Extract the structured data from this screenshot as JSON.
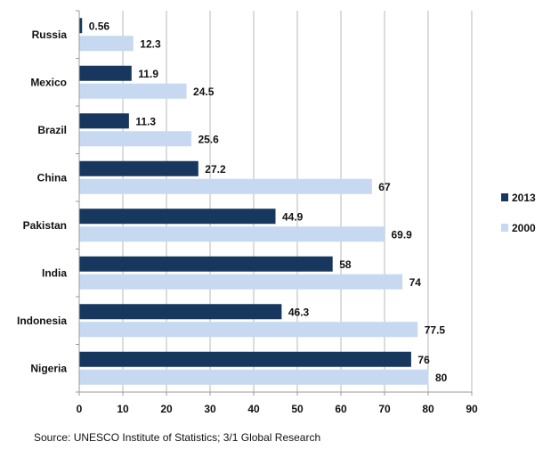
{
  "chart_data": {
    "type": "bar",
    "orientation": "horizontal",
    "categories": [
      "Russia",
      "Mexico",
      "Brazil",
      "China",
      "Pakistan",
      "India",
      "Indonesia",
      "Nigeria"
    ],
    "series": [
      {
        "name": "2013",
        "color": "#17375e",
        "values": [
          0.56,
          11.9,
          11.3,
          27.2,
          44.9,
          58,
          46.3,
          76
        ]
      },
      {
        "name": "2000",
        "color": "#c6d9f0",
        "values": [
          12.3,
          24.5,
          25.6,
          67,
          69.9,
          74,
          77.5,
          80
        ]
      }
    ],
    "data_labels": [
      [
        "0.56",
        "11.9",
        "11.3",
        "27.2",
        "44.9",
        "58",
        "46.3",
        "76"
      ],
      [
        "12.3",
        "24.5",
        "25.6",
        "67",
        "69.9",
        "74",
        "77.5",
        "80"
      ]
    ],
    "xlim": [
      0,
      90
    ],
    "xticks": [
      0,
      10,
      20,
      30,
      40,
      50,
      60,
      70,
      80,
      90
    ],
    "xtick_labels": [
      "0",
      "10",
      "20",
      "30",
      "40",
      "50",
      "60",
      "70",
      "80",
      "90"
    ],
    "grid": "vertical",
    "legend_position": "right",
    "title": "",
    "xlabel": "",
    "ylabel": ""
  },
  "source_note": "Source: UNESCO Institute of Statistics; 3/1 Global Research"
}
